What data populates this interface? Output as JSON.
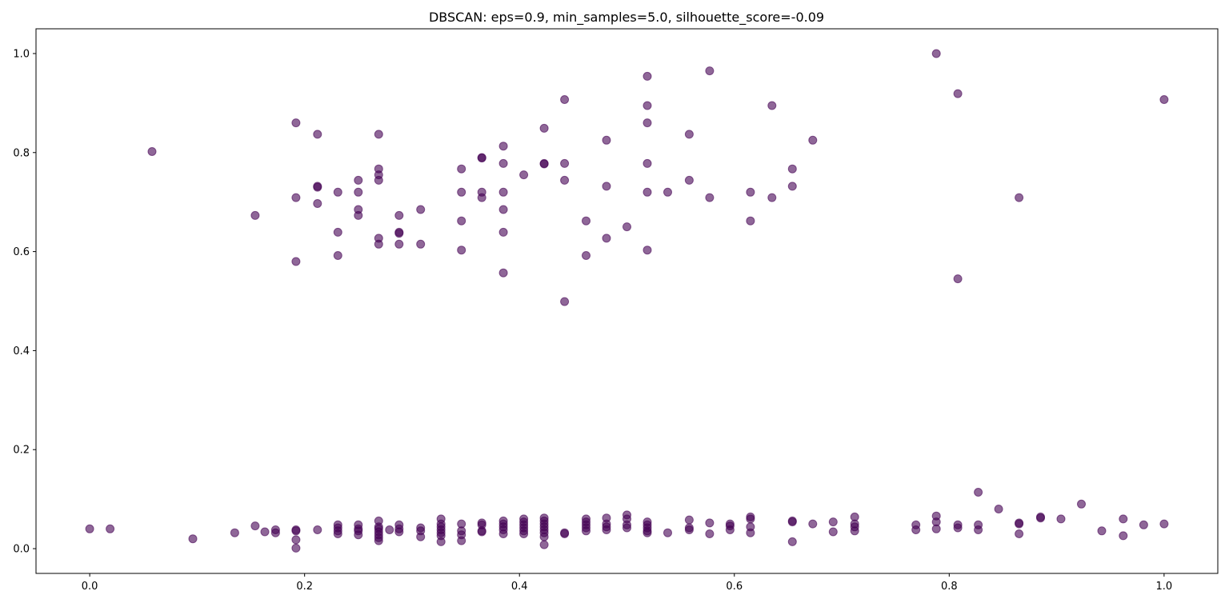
{
  "chart_data": {
    "type": "scatter",
    "title": "DBSCAN: eps=0.9, min_samples=5.0, silhouette_score=-0.09",
    "xlabel": "",
    "ylabel": "",
    "xlim": [
      -0.05,
      1.05
    ],
    "ylim": [
      -0.05,
      1.05
    ],
    "xticks": [
      "0.0",
      "0.2",
      "0.4",
      "0.6",
      "0.8",
      "1.0"
    ],
    "yticks": [
      "0.0",
      "0.2",
      "0.4",
      "0.6",
      "0.8",
      "1.0"
    ],
    "grid": false,
    "marker_color": "#440154",
    "marker_alpha": 0.6,
    "series": [
      {
        "points": [
          [
            0.058,
            0.802
          ],
          [
            0.154,
            0.673
          ],
          [
            0.192,
            0.86
          ],
          [
            0.192,
            0.709
          ],
          [
            0.192,
            0.58
          ],
          [
            0.212,
            0.837
          ],
          [
            0.212,
            0.732
          ],
          [
            0.212,
            0.73
          ],
          [
            0.212,
            0.697
          ],
          [
            0.231,
            0.72
          ],
          [
            0.231,
            0.639
          ],
          [
            0.231,
            0.592
          ],
          [
            0.25,
            0.744
          ],
          [
            0.25,
            0.72
          ],
          [
            0.25,
            0.685
          ],
          [
            0.25,
            0.673
          ],
          [
            0.269,
            0.837
          ],
          [
            0.269,
            0.767
          ],
          [
            0.269,
            0.755
          ],
          [
            0.269,
            0.744
          ],
          [
            0.269,
            0.627
          ],
          [
            0.269,
            0.615
          ],
          [
            0.288,
            0.673
          ],
          [
            0.288,
            0.639
          ],
          [
            0.288,
            0.637
          ],
          [
            0.288,
            0.615
          ],
          [
            0.308,
            0.685
          ],
          [
            0.308,
            0.615
          ],
          [
            0.346,
            0.767
          ],
          [
            0.346,
            0.72
          ],
          [
            0.346,
            0.662
          ],
          [
            0.346,
            0.603
          ],
          [
            0.365,
            0.79
          ],
          [
            0.365,
            0.789
          ],
          [
            0.365,
            0.72
          ],
          [
            0.365,
            0.709
          ],
          [
            0.385,
            0.813
          ],
          [
            0.385,
            0.778
          ],
          [
            0.385,
            0.72
          ],
          [
            0.385,
            0.685
          ],
          [
            0.385,
            0.639
          ],
          [
            0.385,
            0.557
          ],
          [
            0.404,
            0.755
          ],
          [
            0.423,
            0.849
          ],
          [
            0.423,
            0.778
          ],
          [
            0.423,
            0.777
          ],
          [
            0.442,
            0.907
          ],
          [
            0.442,
            0.778
          ],
          [
            0.442,
            0.744
          ],
          [
            0.442,
            0.499
          ],
          [
            0.462,
            0.662
          ],
          [
            0.462,
            0.592
          ],
          [
            0.481,
            0.825
          ],
          [
            0.481,
            0.732
          ],
          [
            0.481,
            0.627
          ],
          [
            0.5,
            0.65
          ],
          [
            0.519,
            0.954
          ],
          [
            0.519,
            0.895
          ],
          [
            0.519,
            0.86
          ],
          [
            0.519,
            0.778
          ],
          [
            0.519,
            0.72
          ],
          [
            0.519,
            0.603
          ],
          [
            0.538,
            0.72
          ],
          [
            0.558,
            0.837
          ],
          [
            0.558,
            0.744
          ],
          [
            0.577,
            0.965
          ],
          [
            0.577,
            0.709
          ],
          [
            0.615,
            0.72
          ],
          [
            0.615,
            0.662
          ],
          [
            0.635,
            0.895
          ],
          [
            0.635,
            0.709
          ],
          [
            0.654,
            0.767
          ],
          [
            0.654,
            0.732
          ],
          [
            0.673,
            0.825
          ],
          [
            0.788,
            1.0
          ],
          [
            0.808,
            0.919
          ],
          [
            0.808,
            0.545
          ],
          [
            0.865,
            0.709
          ],
          [
            1.0,
            0.907
          ],
          [
            0.0,
            0.04
          ],
          [
            0.019,
            0.04
          ],
          [
            0.096,
            0.02
          ],
          [
            0.135,
            0.032
          ],
          [
            0.154,
            0.046
          ],
          [
            0.163,
            0.034
          ],
          [
            0.173,
            0.038
          ],
          [
            0.173,
            0.032
          ],
          [
            0.192,
            0.038
          ],
          [
            0.192,
            0.036
          ],
          [
            0.192,
            0.018
          ],
          [
            0.192,
            0.001
          ],
          [
            0.212,
            0.038
          ],
          [
            0.231,
            0.048
          ],
          [
            0.231,
            0.042
          ],
          [
            0.231,
            0.036
          ],
          [
            0.231,
            0.03
          ],
          [
            0.25,
            0.048
          ],
          [
            0.25,
            0.04
          ],
          [
            0.25,
            0.036
          ],
          [
            0.25,
            0.028
          ],
          [
            0.269,
            0.056
          ],
          [
            0.269,
            0.044
          ],
          [
            0.269,
            0.04
          ],
          [
            0.269,
            0.034
          ],
          [
            0.269,
            0.028
          ],
          [
            0.269,
            0.022
          ],
          [
            0.269,
            0.016
          ],
          [
            0.279,
            0.038
          ],
          [
            0.288,
            0.048
          ],
          [
            0.288,
            0.04
          ],
          [
            0.288,
            0.034
          ],
          [
            0.308,
            0.042
          ],
          [
            0.308,
            0.036
          ],
          [
            0.308,
            0.024
          ],
          [
            0.327,
            0.06
          ],
          [
            0.327,
            0.05
          ],
          [
            0.327,
            0.044
          ],
          [
            0.327,
            0.038
          ],
          [
            0.327,
            0.032
          ],
          [
            0.327,
            0.026
          ],
          [
            0.327,
            0.014
          ],
          [
            0.346,
            0.05
          ],
          [
            0.346,
            0.036
          ],
          [
            0.346,
            0.028
          ],
          [
            0.346,
            0.016
          ],
          [
            0.365,
            0.052
          ],
          [
            0.365,
            0.048
          ],
          [
            0.365,
            0.036
          ],
          [
            0.365,
            0.034
          ],
          [
            0.385,
            0.056
          ],
          [
            0.385,
            0.05
          ],
          [
            0.385,
            0.044
          ],
          [
            0.385,
            0.038
          ],
          [
            0.385,
            0.03
          ],
          [
            0.404,
            0.06
          ],
          [
            0.404,
            0.054
          ],
          [
            0.404,
            0.048
          ],
          [
            0.404,
            0.042
          ],
          [
            0.404,
            0.036
          ],
          [
            0.404,
            0.03
          ],
          [
            0.423,
            0.062
          ],
          [
            0.423,
            0.056
          ],
          [
            0.423,
            0.05
          ],
          [
            0.423,
            0.044
          ],
          [
            0.423,
            0.038
          ],
          [
            0.423,
            0.032
          ],
          [
            0.423,
            0.024
          ],
          [
            0.423,
            0.008
          ],
          [
            0.442,
            0.032
          ],
          [
            0.442,
            0.03
          ],
          [
            0.462,
            0.06
          ],
          [
            0.462,
            0.054
          ],
          [
            0.462,
            0.048
          ],
          [
            0.462,
            0.042
          ],
          [
            0.462,
            0.036
          ],
          [
            0.481,
            0.062
          ],
          [
            0.481,
            0.05
          ],
          [
            0.481,
            0.044
          ],
          [
            0.481,
            0.038
          ],
          [
            0.5,
            0.068
          ],
          [
            0.5,
            0.06
          ],
          [
            0.5,
            0.048
          ],
          [
            0.5,
            0.042
          ],
          [
            0.519,
            0.054
          ],
          [
            0.519,
            0.048
          ],
          [
            0.519,
            0.042
          ],
          [
            0.519,
            0.036
          ],
          [
            0.519,
            0.032
          ],
          [
            0.538,
            0.032
          ],
          [
            0.558,
            0.058
          ],
          [
            0.558,
            0.042
          ],
          [
            0.558,
            0.038
          ],
          [
            0.577,
            0.052
          ],
          [
            0.577,
            0.03
          ],
          [
            0.596,
            0.05
          ],
          [
            0.596,
            0.046
          ],
          [
            0.596,
            0.038
          ],
          [
            0.615,
            0.064
          ],
          [
            0.615,
            0.06
          ],
          [
            0.615,
            0.044
          ],
          [
            0.615,
            0.032
          ],
          [
            0.654,
            0.056
          ],
          [
            0.654,
            0.054
          ],
          [
            0.654,
            0.014
          ],
          [
            0.673,
            0.05
          ],
          [
            0.692,
            0.054
          ],
          [
            0.692,
            0.034
          ],
          [
            0.712,
            0.064
          ],
          [
            0.712,
            0.05
          ],
          [
            0.712,
            0.044
          ],
          [
            0.712,
            0.036
          ],
          [
            0.769,
            0.048
          ],
          [
            0.769,
            0.038
          ],
          [
            0.788,
            0.066
          ],
          [
            0.788,
            0.054
          ],
          [
            0.788,
            0.04
          ],
          [
            0.808,
            0.048
          ],
          [
            0.808,
            0.042
          ],
          [
            0.827,
            0.114
          ],
          [
            0.827,
            0.048
          ],
          [
            0.827,
            0.038
          ],
          [
            0.846,
            0.08
          ],
          [
            0.865,
            0.052
          ],
          [
            0.865,
            0.05
          ],
          [
            0.865,
            0.03
          ],
          [
            0.885,
            0.064
          ],
          [
            0.885,
            0.062
          ],
          [
            0.904,
            0.06
          ],
          [
            0.923,
            0.09
          ],
          [
            0.942,
            0.036
          ],
          [
            0.962,
            0.06
          ],
          [
            0.962,
            0.026
          ],
          [
            0.981,
            0.048
          ],
          [
            1.0,
            0.05
          ]
        ]
      }
    ]
  }
}
